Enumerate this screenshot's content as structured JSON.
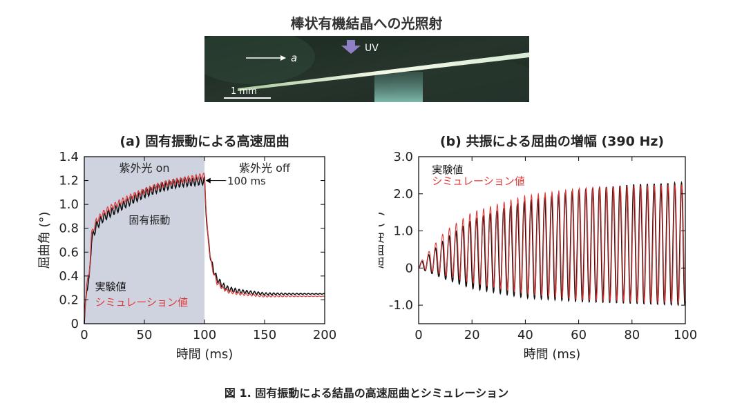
{
  "header": {
    "title": "棒状有機結晶への光照射"
  },
  "photo": {
    "arrow_label": "a",
    "uv_label": "UV",
    "scale_label": "1 mm"
  },
  "caption": "図 1. 固有振動による結晶の高速屈曲とシミュレーション",
  "colors": {
    "experiment": "#111111",
    "simulation": "#e03a3a",
    "uv_shade": "#cfd3e0",
    "uv_arrow": "#8f7fc4"
  },
  "chart_data": [
    {
      "type": "line",
      "title": "(a) 固有振動による高速屈曲",
      "xlabel": "時間 (ms)",
      "ylabel": "屈曲角 (°)",
      "xlim": [
        0,
        200
      ],
      "ylim": [
        0,
        1.4
      ],
      "x_ticks": [
        0,
        50,
        100,
        150,
        200
      ],
      "y_ticks": [
        0,
        0.2,
        0.4,
        0.6,
        0.8,
        1.0,
        1.2,
        1.4
      ],
      "x_tick_labels": [
        "0",
        "50",
        "100",
        "150",
        "200"
      ],
      "y_tick_labels": [
        "0",
        "0.2",
        "0.4",
        "0.6",
        "0.8",
        "1.0",
        "1.2",
        "1.4"
      ],
      "shaded_region": {
        "x": [
          0,
          100
        ],
        "label": "紫外光 on"
      },
      "region_labels": {
        "on": "紫外光 on",
        "off": "紫外光 off"
      },
      "annotations": {
        "marker": "100 ms",
        "oscillation": "固有振動"
      },
      "legend": {
        "placement": "bottom-left"
      },
      "series": [
        {
          "name": "実験値",
          "color": "#111111",
          "x": [
            0,
            2,
            4,
            6,
            10,
            15,
            20,
            30,
            40,
            50,
            60,
            70,
            80,
            90,
            100,
            101,
            103,
            106,
            110,
            115,
            120,
            130,
            140,
            150,
            160,
            180,
            200
          ],
          "y": [
            0,
            0.3,
            0.36,
            0.7,
            0.82,
            0.88,
            0.92,
            0.98,
            1.04,
            1.09,
            1.13,
            1.16,
            1.18,
            1.19,
            1.2,
            1.0,
            0.7,
            0.5,
            0.38,
            0.32,
            0.29,
            0.27,
            0.26,
            0.25,
            0.25,
            0.25,
            0.25
          ]
        },
        {
          "name": "シミュレーション値",
          "color": "#e03a3a",
          "x": [
            0,
            2,
            4,
            6,
            10,
            15,
            20,
            30,
            40,
            50,
            60,
            70,
            80,
            90,
            100,
            101,
            103,
            106,
            110,
            115,
            120,
            130,
            140,
            150,
            160,
            180,
            200
          ],
          "y": [
            0,
            0.35,
            0.4,
            0.75,
            0.86,
            0.92,
            0.96,
            1.02,
            1.07,
            1.11,
            1.15,
            1.18,
            1.2,
            1.22,
            1.24,
            1.02,
            0.7,
            0.48,
            0.35,
            0.3,
            0.27,
            0.25,
            0.24,
            0.23,
            0.23,
            0.23,
            0.23
          ]
        }
      ]
    },
    {
      "type": "line",
      "title": "(b) 共振による屈曲の増幅 (390 Hz)",
      "xlabel": "時間 (ms)",
      "ylabel": "屈曲角 (°)",
      "xlim": [
        0,
        100
      ],
      "ylim": [
        -1.5,
        3.0
      ],
      "x_ticks": [
        0,
        20,
        40,
        60,
        80,
        100
      ],
      "y_ticks": [
        -1.0,
        0,
        1.0,
        2.0,
        3.0
      ],
      "x_tick_labels": [
        "0",
        "20",
        "40",
        "60",
        "80",
        "100"
      ],
      "y_tick_labels": [
        "-1.0",
        "0",
        "1.0",
        "2.0",
        "3.0"
      ],
      "frequency_hz": 390,
      "legend": {
        "placement": "top-left"
      },
      "series": [
        {
          "name": "実験値",
          "color": "#111111",
          "envelope": {
            "t": [
              0,
              10,
              20,
              40,
              60,
              80,
              100
            ],
            "max": [
              0.1,
              0.8,
              1.3,
              1.8,
              2.1,
              2.25,
              2.3
            ],
            "min": [
              0.0,
              -0.3,
              -0.55,
              -0.8,
              -0.9,
              -0.95,
              -1.0
            ]
          }
        },
        {
          "name": "シミュレーション値",
          "color": "#e03a3a",
          "envelope": {
            "t": [
              0,
              10,
              20,
              40,
              60,
              80,
              100
            ],
            "max": [
              0.1,
              1.0,
              1.5,
              1.95,
              2.15,
              2.2,
              2.25
            ],
            "min": [
              0.0,
              -0.2,
              -0.4,
              -0.7,
              -0.85,
              -0.9,
              -0.95
            ]
          }
        }
      ]
    }
  ]
}
